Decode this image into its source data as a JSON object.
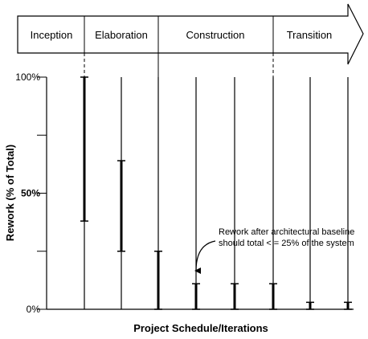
{
  "chart_data": {
    "type": "range-bar",
    "title": "",
    "phases": [
      "Inception",
      "Elaboration",
      "Construction",
      "Transition"
    ],
    "xlabel": "Project Schedule/Iterations",
    "ylabel": "Rework (% of Total)",
    "ylim": [
      0,
      100
    ],
    "yticks": [
      0,
      25,
      50,
      75,
      100
    ],
    "yticklabels": [
      {
        "value": 100,
        "label": "100%"
      },
      {
        "value": 50,
        "label": "50%"
      },
      {
        "value": 0,
        "label": "0%"
      }
    ],
    "iterations": [
      {
        "low": 0,
        "high": 100,
        "bar_low": 38,
        "bar_high": 100
      },
      {
        "low": 0,
        "high": 100,
        "bar_low": 25,
        "bar_high": 64
      },
      {
        "low": 0,
        "high": 100,
        "bar_low": 0,
        "bar_high": 25
      },
      {
        "low": 0,
        "high": 100,
        "bar_low": 0,
        "bar_high": 11
      },
      {
        "low": 0,
        "high": 100,
        "bar_low": 0,
        "bar_high": 11
      },
      {
        "low": 0,
        "high": 100,
        "bar_low": 0,
        "bar_high": 11
      },
      {
        "low": 0,
        "high": 100,
        "bar_low": 0,
        "bar_high": 3
      },
      {
        "low": 0,
        "high": 100,
        "bar_low": 0,
        "bar_high": 3
      }
    ],
    "annotation": {
      "lines": [
        "Rework after architectural baseline",
        "should total < = 25% of the system"
      ],
      "target_iteration": 3,
      "target_value": 11
    }
  }
}
